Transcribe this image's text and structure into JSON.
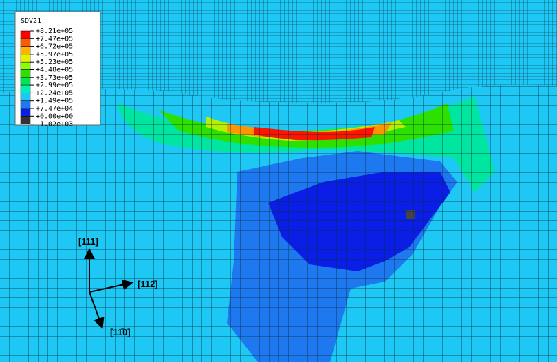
{
  "legend": {
    "title": "SDV21",
    "entries": [
      {
        "label": "+8.21e+05",
        "color": "#ff0000"
      },
      {
        "label": "+7.47e+05",
        "color": "#ff5a00"
      },
      {
        "label": "+6.72e+05",
        "color": "#ffb400"
      },
      {
        "label": "+5.97e+05",
        "color": "#e6f000"
      },
      {
        "label": "+5.23e+05",
        "color": "#8cff00"
      },
      {
        "label": "+4.48e+05",
        "color": "#2ee000"
      },
      {
        "label": "+3.73e+05",
        "color": "#00e650"
      },
      {
        "label": "+2.99e+05",
        "color": "#00f0b4"
      },
      {
        "label": "+2.24e+05",
        "color": "#1ec8f5"
      },
      {
        "label": "+1.49e+05",
        "color": "#1e78f0"
      },
      {
        "label": "+7.47e+04",
        "color": "#0a1ee6"
      },
      {
        "label": "+0.00e+00",
        "color": "#333333"
      },
      {
        "label": "-1.02e+03",
        "color": "#333333"
      }
    ]
  },
  "axes": [
    {
      "label": "[111]"
    },
    {
      "label": "[112̄]"
    },
    {
      "label": "[11̄0]"
    }
  ]
}
